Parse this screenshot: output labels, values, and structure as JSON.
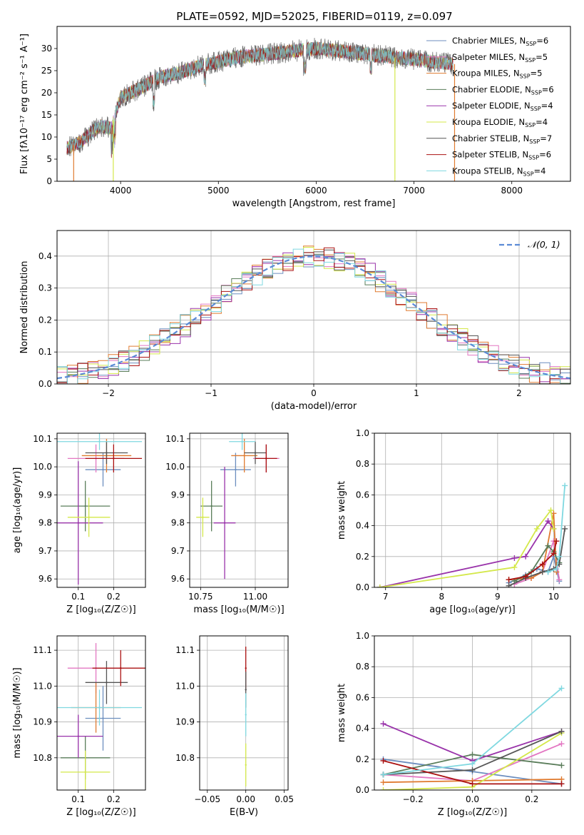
{
  "figure_title": "PLATE=0592, MJD=52025, FIBERID=0119, z=0.097",
  "colors": {
    "chabrier_miles": "#6c8ebf",
    "salpeter_miles": "#e377c2",
    "kroupa_miles": "#e07b30",
    "chabrier_elodie": "#5a7d5a",
    "salpeter_elodie": "#9933aa",
    "kroupa_elodie": "#d4e84a",
    "chabrier_stelib": "#555555",
    "salpeter_stelib": "#aa1111",
    "kroupa_stelib": "#7fd8e0",
    "normal_fit": "#5b8bd6",
    "grid": "#b0b0b0"
  },
  "chart_data": [
    {
      "id": "spectrum",
      "type": "line",
      "title": "PLATE=0592, MJD=52025, FIBERID=0119, z=0.097",
      "xlabel": "wavelength [Angstrom, rest frame]",
      "ylabel": "Flux [fλ10⁻¹⁷ erg cm⁻² s⁻¹ A⁻¹]",
      "xlim": [
        3350,
        8600
      ],
      "ylim": [
        0,
        35
      ],
      "xticks": [
        "4000",
        "5000",
        "6000",
        "7000",
        "8000"
      ],
      "yticks": [
        "0",
        "5",
        "10",
        "15",
        "20",
        "25",
        "30"
      ],
      "grid": false,
      "legend_position": "top-right",
      "series": [
        {
          "name": "Chabrier MILES, N_SSP=6"
        },
        {
          "name": "Salpeter MILES, N_SSP=5"
        },
        {
          "name": "Kroupa MILES, N_SSP=5"
        },
        {
          "name": "Chabrier ELODIE, N_SSP=6"
        },
        {
          "name": "Salpeter ELODIE, N_SSP=4"
        },
        {
          "name": "Kroupa ELODIE, N_SSP=4"
        },
        {
          "name": "Chabrier STELIB, N_SSP=7"
        },
        {
          "name": "Salpeter STELIB, N_SSP=6"
        },
        {
          "name": "Kroupa STELIB, N_SSP=4"
        }
      ],
      "continuum": {
        "x": [
          3450,
          3600,
          3700,
          3800,
          3900,
          4000,
          4200,
          4400,
          4600,
          4800,
          5000,
          5200,
          5400,
          5600,
          5800,
          6000,
          6200,
          6400,
          6600,
          6800,
          7000,
          7200,
          7400
        ],
        "y": [
          7.5,
          9,
          11,
          12.5,
          12,
          19,
          21,
          23.5,
          24.5,
          26,
          27,
          28,
          28.5,
          29,
          29.5,
          30,
          29.5,
          29,
          28.5,
          28,
          27.5,
          27,
          26.5
        ]
      },
      "dropouts": [
        {
          "series": "Kroupa MILES, N_SSP=5",
          "x": 3520
        },
        {
          "series": "Kroupa ELODIE, N_SSP=4",
          "x": 3925
        },
        {
          "series": "Kroupa ELODIE, N_SSP=4",
          "x": 6805
        },
        {
          "series": "Kroupa MILES, N_SSP=5",
          "x": 7415
        }
      ]
    },
    {
      "id": "residuals",
      "type": "histogram",
      "xlabel": "(data-model)/error",
      "ylabel": "Normed distribution",
      "xlim": [
        -2.5,
        2.5
      ],
      "ylim": [
        0,
        0.48
      ],
      "xticks": [
        "−2",
        "−1",
        "0",
        "1",
        "2"
      ],
      "yticks": [
        "0.0",
        "0.1",
        "0.2",
        "0.3",
        "0.4"
      ],
      "grid": true,
      "legend": "𝒩(0, 1)",
      "legend_position": "top-right",
      "bin_width": 0.1
    },
    {
      "id": "age_vs_Z",
      "type": "scatter",
      "xlabel": "Z [log₁₀(Z/Z☉)]",
      "ylabel": "age  [log₁₀(age/yr)]",
      "xlim": [
        0.04,
        0.29
      ],
      "ylim": [
        9.57,
        10.12
      ],
      "xticks": [
        "0.1",
        "0.2"
      ],
      "yticks": [
        "9.6",
        "9.7",
        "9.8",
        "9.9",
        "10.0",
        "10.1"
      ],
      "grid": true,
      "points": [
        {
          "series": "Chabrier MILES",
          "x": 0.17,
          "y": 9.99,
          "xerr": 0.05,
          "yerr": 0.06
        },
        {
          "series": "Salpeter MILES",
          "x": 0.15,
          "y": 10.03,
          "xerr": 0.08,
          "yerr": 0.05
        },
        {
          "series": "Kroupa MILES",
          "x": 0.18,
          "y": 10.04,
          "xerr": 0.07,
          "yerr": 0.06
        },
        {
          "series": "Chabrier ELODIE",
          "x": 0.12,
          "y": 9.86,
          "xerr": 0.07,
          "yerr": 0.09
        },
        {
          "series": "Salpeter ELODIE",
          "x": 0.1,
          "y": 9.8,
          "xerr": 0.07,
          "yerr": 0.22
        },
        {
          "series": "Kroupa ELODIE",
          "x": 0.13,
          "y": 9.82,
          "xerr": 0.06,
          "yerr": 0.07
        },
        {
          "series": "Chabrier STELIB",
          "x": 0.18,
          "y": 10.05,
          "xerr": 0.06,
          "yerr": 0.04
        },
        {
          "series": "Salpeter STELIB",
          "x": 0.2,
          "y": 10.03,
          "xerr": 0.08,
          "yerr": 0.05
        },
        {
          "series": "Kroupa STELIB",
          "x": 0.16,
          "y": 10.09,
          "xerr": 0.12,
          "yerr": 0.03
        }
      ]
    },
    {
      "id": "age_vs_mass",
      "type": "scatter",
      "xlabel": "mass [log₁₀(M/M☉)]",
      "ylabel": "",
      "xlim": [
        10.7,
        11.15
      ],
      "ylim": [
        9.57,
        10.12
      ],
      "xticks": [
        "10.75",
        "11.00"
      ],
      "yticks": [
        "9.6",
        "9.7",
        "9.8",
        "9.9",
        "10.0",
        "10.1"
      ],
      "grid": true,
      "points": [
        {
          "series": "Chabrier MILES",
          "x": 10.91,
          "y": 9.99,
          "xerr": 0.07,
          "yerr": 0.06
        },
        {
          "series": "Salpeter MILES",
          "x": 11.05,
          "y": 10.03,
          "xerr": 0.06,
          "yerr": 0.05
        },
        {
          "series": "Kroupa MILES",
          "x": 10.95,
          "y": 10.04,
          "xerr": 0.06,
          "yerr": 0.06
        },
        {
          "series": "Chabrier ELODIE",
          "x": 10.8,
          "y": 9.86,
          "xerr": 0.05,
          "yerr": 0.09
        },
        {
          "series": "Salpeter ELODIE",
          "x": 10.86,
          "y": 9.8,
          "xerr": 0.05,
          "yerr": 0.2
        },
        {
          "series": "Kroupa ELODIE",
          "x": 10.76,
          "y": 9.82,
          "xerr": 0.03,
          "yerr": 0.07
        },
        {
          "series": "Chabrier STELIB",
          "x": 11.0,
          "y": 10.05,
          "xerr": 0.05,
          "yerr": 0.04
        },
        {
          "series": "Salpeter STELIB",
          "x": 11.05,
          "y": 10.03,
          "xerr": 0.05,
          "yerr": 0.05
        },
        {
          "series": "Kroupa STELIB",
          "x": 10.94,
          "y": 10.09,
          "xerr": 0.06,
          "yerr": 0.03
        }
      ]
    },
    {
      "id": "mass_weight_vs_age",
      "type": "line",
      "xlabel": "age  [log₁₀(age/yr)]",
      "ylabel": "mass weight",
      "xlim": [
        6.8,
        10.3
      ],
      "ylim": [
        0,
        1
      ],
      "xticks": [
        "7",
        "8",
        "9",
        "10"
      ],
      "yticks": [
        "0.0",
        "0.2",
        "0.4",
        "0.6",
        "0.8",
        "1.0"
      ],
      "grid": true,
      "series": [
        {
          "name": "Chabrier MILES",
          "x": [
            9.2,
            9.5,
            9.7,
            9.9,
            10.0,
            10.1
          ],
          "y": [
            0.03,
            0.08,
            0.12,
            0.1,
            0.2,
            0.04
          ]
        },
        {
          "name": "Salpeter MILES",
          "x": [
            9.3,
            9.6,
            9.8,
            10.0,
            10.1
          ],
          "y": [
            0.02,
            0.06,
            0.1,
            0.3,
            0.05
          ]
        },
        {
          "name": "Kroupa MILES",
          "x": [
            9.2,
            9.6,
            9.8,
            10.0,
            10.05
          ],
          "y": [
            0.05,
            0.06,
            0.1,
            0.48,
            0.1
          ]
        },
        {
          "name": "Chabrier ELODIE",
          "x": [
            9.3,
            9.6,
            9.9,
            10.0,
            10.1
          ],
          "y": [
            0.04,
            0.1,
            0.27,
            0.23,
            0.16
          ]
        },
        {
          "name": "Salpeter ELODIE",
          "x": [
            6.9,
            9.3,
            9.5,
            9.9,
            10.0
          ],
          "y": [
            0.0,
            0.19,
            0.2,
            0.43,
            0.38
          ]
        },
        {
          "name": "Kroupa ELODIE",
          "x": [
            6.9,
            9.3,
            9.7,
            9.95,
            10.0
          ],
          "y": [
            0.0,
            0.13,
            0.38,
            0.5,
            0.38
          ]
        },
        {
          "name": "Chabrier STELIB",
          "x": [
            9.2,
            9.5,
            9.8,
            10.0,
            10.1,
            10.2
          ],
          "y": [
            0.01,
            0.06,
            0.1,
            0.12,
            0.15,
            0.38
          ]
        },
        {
          "name": "Salpeter STELIB",
          "x": [
            9.2,
            9.5,
            9.8,
            10.0,
            10.05
          ],
          "y": [
            0.05,
            0.07,
            0.15,
            0.22,
            0.3
          ]
        },
        {
          "name": "Kroupa STELIB",
          "x": [
            9.9,
            10.05,
            10.1,
            10.2
          ],
          "y": [
            0.1,
            0.12,
            0.2,
            0.66
          ]
        }
      ]
    },
    {
      "id": "mass_vs_Z",
      "type": "scatter",
      "xlabel": "Z [log₁₀(Z/Z☉)]",
      "ylabel": "mass [log₁₀(M/M☉)]",
      "xlim": [
        0.04,
        0.29
      ],
      "ylim": [
        10.71,
        11.14
      ],
      "xticks": [
        "0.1",
        "0.2"
      ],
      "yticks": [
        "10.8",
        "10.9",
        "11.0",
        "11.1"
      ],
      "grid": true,
      "points": [
        {
          "series": "Chabrier MILES",
          "x": 0.17,
          "y": 10.91,
          "xerr": 0.05,
          "yerr": 0.09
        },
        {
          "series": "Salpeter MILES",
          "x": 0.15,
          "y": 11.05,
          "xerr": 0.08,
          "yerr": 0.07
        },
        {
          "series": "Kroupa MILES",
          "x": 0.15,
          "y": 10.94,
          "xerr": 0.07,
          "yerr": 0.07
        },
        {
          "series": "Chabrier ELODIE",
          "x": 0.12,
          "y": 10.8,
          "xerr": 0.07,
          "yerr": 0.06
        },
        {
          "series": "Salpeter ELODIE",
          "x": 0.1,
          "y": 10.86,
          "xerr": 0.07,
          "yerr": 0.06
        },
        {
          "series": "Kroupa ELODIE",
          "x": 0.12,
          "y": 10.76,
          "xerr": 0.07,
          "yerr": 0.06
        },
        {
          "series": "Chabrier STELIB",
          "x": 0.18,
          "y": 11.01,
          "xerr": 0.06,
          "yerr": 0.06
        },
        {
          "series": "Salpeter STELIB",
          "x": 0.22,
          "y": 11.05,
          "xerr": 0.08,
          "yerr": 0.05
        },
        {
          "series": "Kroupa STELIB",
          "x": 0.16,
          "y": 10.94,
          "xerr": 0.12,
          "yerr": 0.05
        }
      ]
    },
    {
      "id": "mass_vs_ebv",
      "type": "scatter",
      "xlabel": "E(B-V)",
      "ylabel": "",
      "xlim": [
        -0.06,
        0.055
      ],
      "ylim": [
        10.71,
        11.14
      ],
      "xticks": [
        "−0.05",
        "0.00",
        "0.05"
      ],
      "yticks": [
        "10.8",
        "10.9",
        "11.0",
        "11.1"
      ],
      "grid": true,
      "points": [
        {
          "series": "Salpeter STELIB",
          "x": 0.0,
          "y": 11.05,
          "yerr": 0.06
        },
        {
          "series": "Chabrier STELIB",
          "x": 0.0,
          "y": 10.99,
          "yerr": 0.05
        },
        {
          "series": "Kroupa STELIB",
          "x": 0.0,
          "y": 10.92,
          "yerr": 0.06
        },
        {
          "series": "Kroupa ELODIE",
          "x": 0.0,
          "y": 10.78,
          "yerr": 0.06
        }
      ]
    },
    {
      "id": "mass_weight_vs_Z",
      "type": "line",
      "xlabel": "Z [log₁₀(Z/Z☉)]",
      "ylabel": "mass weight",
      "xlim": [
        -0.33,
        0.33
      ],
      "ylim": [
        0,
        1
      ],
      "xticks": [
        "−0.2",
        "0.0",
        "0.2"
      ],
      "yticks": [
        "0.0",
        "0.2",
        "0.4",
        "0.6",
        "0.8",
        "1.0"
      ],
      "grid": true,
      "series": [
        {
          "name": "Chabrier MILES",
          "x": [
            -0.3,
            0.0,
            0.3
          ],
          "y": [
            0.2,
            0.12,
            0.04
          ]
        },
        {
          "name": "Salpeter MILES",
          "x": [
            -0.3,
            0.0,
            0.3
          ],
          "y": [
            0.1,
            0.06,
            0.3
          ]
        },
        {
          "name": "Kroupa MILES",
          "x": [
            -0.3,
            0.0,
            0.3
          ],
          "y": [
            0.05,
            0.06,
            0.07
          ]
        },
        {
          "name": "Chabrier ELODIE",
          "x": [
            -0.3,
            0.0,
            0.3
          ],
          "y": [
            0.1,
            0.23,
            0.16
          ]
        },
        {
          "name": "Salpeter ELODIE",
          "x": [
            -0.3,
            0.0,
            0.3
          ],
          "y": [
            0.43,
            0.19,
            0.38
          ]
        },
        {
          "name": "Kroupa ELODIE",
          "x": [
            -0.3,
            0.0,
            0.3
          ],
          "y": [
            0.0,
            0.02,
            0.37
          ]
        },
        {
          "name": "Chabrier STELIB",
          "x": [
            -0.3,
            0.0,
            0.3
          ],
          "y": [
            0.1,
            0.13,
            0.38
          ]
        },
        {
          "name": "Salpeter STELIB",
          "x": [
            -0.3,
            0.0,
            0.3
          ],
          "y": [
            0.19,
            0.04,
            0.04
          ]
        },
        {
          "name": "Kroupa STELIB",
          "x": [
            -0.3,
            0.0,
            0.3
          ],
          "y": [
            0.1,
            0.17,
            0.66
          ]
        }
      ]
    }
  ]
}
